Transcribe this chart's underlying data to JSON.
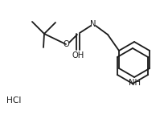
{
  "bg_color": "#ffffff",
  "line_color": "#1a1a1a",
  "lw": 1.3,
  "fs": 7.2,
  "labels": {
    "O": "O",
    "N": "N",
    "OH": "OH",
    "NH": "NH",
    "HCl": "HCl"
  }
}
